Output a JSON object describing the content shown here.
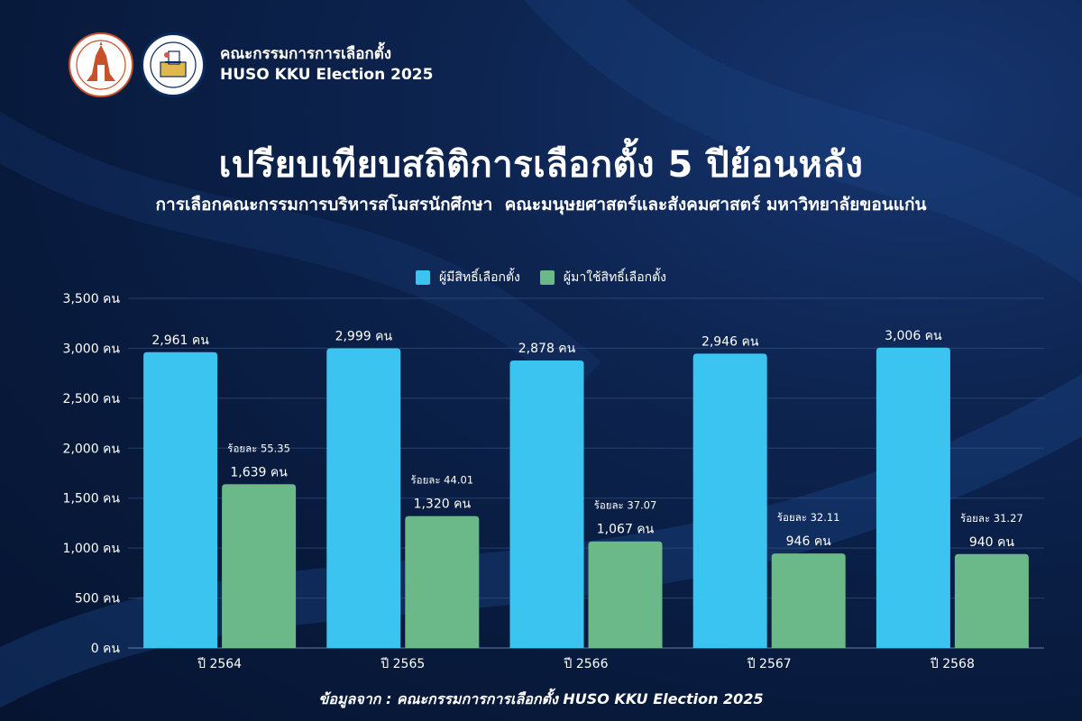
{
  "header": {
    "org_name_th": "คณะกรรมการการเลือกตั้ง",
    "org_name_en": "HUSO KKU Election 2025",
    "logos": [
      {
        "name": "university-logo-icon",
        "color": "#c8512b"
      },
      {
        "name": "election-committee-logo-icon",
        "color": "#0b2a5c"
      }
    ]
  },
  "title": "เปรียบเทียบสถิติการเลือกตั้ง 5 ปีย้อนหลัง",
  "subtitle": "การเลือกคณะกรรมการบริหารสโมสรนักศึกษา  คณะมนุษยศาสตร์และสังคมศาสตร์ มหาวิทยาลัยขอนแก่น",
  "footer": "ข้อมูลจาก : คณะกรรมการการเลือกตั้ง HUSO KKU Election 2025",
  "chart_data": {
    "type": "bar",
    "categories": [
      "ปี 2564",
      "ปี 2565",
      "ปี 2566",
      "ปี 2567",
      "ปี 2568"
    ],
    "series": [
      {
        "name": "ผู้มีสิทธิ์เลือกตั้ง",
        "color": "#3cc4f0",
        "values": [
          2961,
          2999,
          2878,
          2946,
          3006
        ],
        "value_labels": [
          "2,961 คน",
          "2,999 คน",
          "2,878 คน",
          "2,946 คน",
          "3,006 คน"
        ]
      },
      {
        "name": "ผู้มาใช้สิทธิ์เลือกตั้ง",
        "color": "#6bb888",
        "values": [
          1639,
          1320,
          1067,
          946,
          940
        ],
        "value_labels": [
          "1,639 คน",
          "1,320 คน",
          "1,067 คน",
          "946 คน",
          "940 คน"
        ],
        "percent_labels": [
          "ร้อยละ 55.35",
          "ร้อยละ 44.01",
          "ร้อยละ 37.07",
          "ร้อยละ 32.11",
          "ร้อยละ 31.27"
        ]
      }
    ],
    "ylim": [
      0,
      3500
    ],
    "yticks": [
      0,
      500,
      1000,
      1500,
      2000,
      2500,
      3000,
      3500
    ],
    "ytick_labels": [
      "0 คน",
      "500 คน",
      "1,000 คน",
      "1,500 คน",
      "2,000 คน",
      "2,500 คน",
      "3,000 คน",
      "3,500 คน"
    ],
    "grid": true,
    "legend_position": "top-center"
  }
}
